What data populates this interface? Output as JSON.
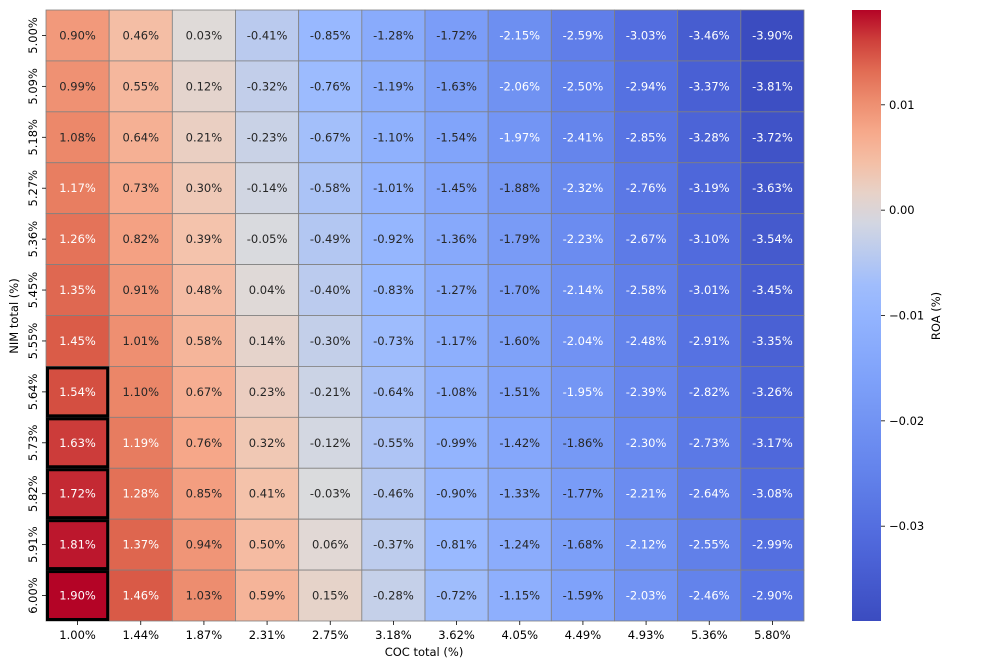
{
  "chart_data": {
    "type": "heatmap",
    "xlabel": "COC total (%)",
    "ylabel": "NIM total (%)",
    "x_tick_labels": [
      "1.00%",
      "1.44%",
      "1.87%",
      "2.31%",
      "2.75%",
      "3.18%",
      "3.62%",
      "4.05%",
      "4.49%",
      "4.93%",
      "5.36%",
      "5.80%"
    ],
    "y_tick_labels": [
      "5.00%",
      "5.09%",
      "5.18%",
      "5.27%",
      "5.36%",
      "5.45%",
      "5.55%",
      "5.64%",
      "5.73%",
      "5.82%",
      "5.91%",
      "6.00%"
    ],
    "values": [
      [
        0.009,
        0.0046,
        0.0003,
        -0.0041,
        -0.0085,
        -0.0128,
        -0.0172,
        -0.0215,
        -0.0259,
        -0.0303,
        -0.0346,
        -0.039
      ],
      [
        0.0099,
        0.0055,
        0.0012,
        -0.0032,
        -0.0076,
        -0.0119,
        -0.0163,
        -0.0206,
        -0.025,
        -0.0294,
        -0.0337,
        -0.0381
      ],
      [
        0.0108,
        0.0064,
        0.0021,
        -0.0023,
        -0.0067,
        -0.011,
        -0.0154,
        -0.0197,
        -0.0241,
        -0.0285,
        -0.0328,
        -0.0372
      ],
      [
        0.0117,
        0.0073,
        0.003,
        -0.0014,
        -0.0058,
        -0.0101,
        -0.0145,
        -0.0188,
        -0.0232,
        -0.0276,
        -0.0319,
        -0.0363
      ],
      [
        0.0126,
        0.0082,
        0.0039,
        -0.0005,
        -0.0049,
        -0.0092,
        -0.0136,
        -0.0179,
        -0.0223,
        -0.0267,
        -0.031,
        -0.0354
      ],
      [
        0.0135,
        0.0091,
        0.0048,
        0.0004,
        -0.004,
        -0.0083,
        -0.0127,
        -0.017,
        -0.0214,
        -0.0258,
        -0.0301,
        -0.0345
      ],
      [
        0.0145,
        0.0101,
        0.0058,
        0.0014,
        -0.003,
        -0.0073,
        -0.0117,
        -0.016,
        -0.0204,
        -0.0248,
        -0.0291,
        -0.0335
      ],
      [
        0.0154,
        0.011,
        0.0067,
        0.0023,
        -0.0021,
        -0.0064,
        -0.0108,
        -0.0151,
        -0.0195,
        -0.0239,
        -0.0282,
        -0.0326
      ],
      [
        0.0163,
        0.0119,
        0.0076,
        0.0032,
        -0.0012,
        -0.0055,
        -0.0099,
        -0.0142,
        -0.0186,
        -0.023,
        -0.0273,
        -0.0317
      ],
      [
        0.0172,
        0.0128,
        0.0085,
        0.0041,
        -0.0003,
        -0.0046,
        -0.009,
        -0.0133,
        -0.0177,
        -0.0221,
        -0.0264,
        -0.0308
      ],
      [
        0.0181,
        0.0137,
        0.0094,
        0.005,
        0.0006,
        -0.0037,
        -0.0081,
        -0.0124,
        -0.0168,
        -0.0212,
        -0.0255,
        -0.0299
      ],
      [
        0.019,
        0.0146,
        0.0103,
        0.0059,
        0.0015,
        -0.0028,
        -0.0072,
        -0.0115,
        -0.0159,
        -0.0203,
        -0.0246,
        -0.029
      ]
    ],
    "cell_labels": [
      [
        "0.90%",
        "0.46%",
        "0.03%",
        "-0.41%",
        "-0.85%",
        "-1.28%",
        "-1.72%",
        "-2.15%",
        "-2.59%",
        "-3.03%",
        "-3.46%",
        "-3.90%"
      ],
      [
        "0.99%",
        "0.55%",
        "0.12%",
        "-0.32%",
        "-0.76%",
        "-1.19%",
        "-1.63%",
        "-2.06%",
        "-2.50%",
        "-2.94%",
        "-3.37%",
        "-3.81%"
      ],
      [
        "1.08%",
        "0.64%",
        "0.21%",
        "-0.23%",
        "-0.67%",
        "-1.10%",
        "-1.54%",
        "-1.97%",
        "-2.41%",
        "-2.85%",
        "-3.28%",
        "-3.72%"
      ],
      [
        "1.17%",
        "0.73%",
        "0.30%",
        "-0.14%",
        "-0.58%",
        "-1.01%",
        "-1.45%",
        "-1.88%",
        "-2.32%",
        "-2.76%",
        "-3.19%",
        "-3.63%"
      ],
      [
        "1.26%",
        "0.82%",
        "0.39%",
        "-0.05%",
        "-0.49%",
        "-0.92%",
        "-1.36%",
        "-1.79%",
        "-2.23%",
        "-2.67%",
        "-3.10%",
        "-3.54%"
      ],
      [
        "1.35%",
        "0.91%",
        "0.48%",
        "0.04%",
        "-0.40%",
        "-0.83%",
        "-1.27%",
        "-1.70%",
        "-2.14%",
        "-2.58%",
        "-3.01%",
        "-3.45%"
      ],
      [
        "1.45%",
        "1.01%",
        "0.58%",
        "0.14%",
        "-0.30%",
        "-0.73%",
        "-1.17%",
        "-1.60%",
        "-2.04%",
        "-2.48%",
        "-2.91%",
        "-3.35%"
      ],
      [
        "1.54%",
        "1.10%",
        "0.67%",
        "0.23%",
        "-0.21%",
        "-0.64%",
        "-1.08%",
        "-1.51%",
        "-1.95%",
        "-2.39%",
        "-2.82%",
        "-3.26%"
      ],
      [
        "1.63%",
        "1.19%",
        "0.76%",
        "0.32%",
        "-0.12%",
        "-0.55%",
        "-0.99%",
        "-1.42%",
        "-1.86%",
        "-2.30%",
        "-2.73%",
        "-3.17%"
      ],
      [
        "1.72%",
        "1.28%",
        "0.85%",
        "0.41%",
        "-0.03%",
        "-0.46%",
        "-0.90%",
        "-1.33%",
        "-1.77%",
        "-2.21%",
        "-2.64%",
        "-3.08%"
      ],
      [
        "1.81%",
        "1.37%",
        "0.94%",
        "0.50%",
        "0.06%",
        "-0.37%",
        "-0.81%",
        "-1.24%",
        "-1.68%",
        "-2.12%",
        "-2.55%",
        "-2.99%"
      ],
      [
        "1.90%",
        "1.46%",
        "1.03%",
        "0.59%",
        "0.15%",
        "-0.28%",
        "-0.72%",
        "-1.15%",
        "-1.59%",
        "-2.03%",
        "-2.46%",
        "-2.90%"
      ]
    ],
    "highlighted_cells": [
      [
        7,
        0
      ],
      [
        8,
        0
      ],
      [
        9,
        0
      ],
      [
        10,
        0
      ],
      [
        11,
        0
      ]
    ],
    "colormap": "coolwarm",
    "colorbar": {
      "label": "ROA (%)",
      "vmin": -0.039,
      "vmax": 0.019,
      "center": 0.0,
      "ticks": [
        0.01,
        0.0,
        -0.01,
        -0.02,
        -0.03
      ],
      "tick_labels": [
        "0.01",
        "0.00",
        "−0.01",
        "−0.02",
        "−0.03"
      ]
    },
    "colors": {
      "min": "#3b4cc0",
      "mid": "#dddcdc",
      "max": "#b40426",
      "grid_line": "#808080",
      "highlight_border": "#000000"
    }
  }
}
